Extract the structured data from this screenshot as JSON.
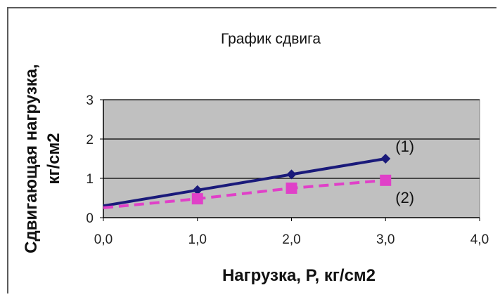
{
  "chart_data": {
    "type": "line",
    "title": "График сдвига",
    "xlabel": "Нагрузка, P, кг/см2",
    "ylabel": "Сдвигающая нагрузка, кг/см2",
    "xlim": [
      0,
      4
    ],
    "ylim": [
      0,
      3
    ],
    "x_ticks": [
      "0,0",
      "1,0",
      "2,0",
      "3,0",
      "4,0"
    ],
    "y_ticks": [
      "0",
      "1",
      "2",
      "3"
    ],
    "grid": true,
    "legend": "none",
    "series": [
      {
        "name": "(1)",
        "color": "#1a1a7a",
        "marker": "diamond",
        "line": "solid",
        "points": [
          [
            0,
            0.3
          ],
          [
            1,
            0.7
          ],
          [
            2,
            1.1
          ],
          [
            3,
            1.5
          ]
        ]
      },
      {
        "name": "(2)",
        "color": "#e040c8",
        "marker": "square",
        "line": "dashed",
        "points": [
          [
            0,
            0.25
          ],
          [
            1,
            0.48
          ],
          [
            2,
            0.75
          ],
          [
            3,
            0.95
          ]
        ]
      }
    ],
    "colors": {
      "plot_bg": "#c0c0c0",
      "grid": "#000000"
    }
  }
}
